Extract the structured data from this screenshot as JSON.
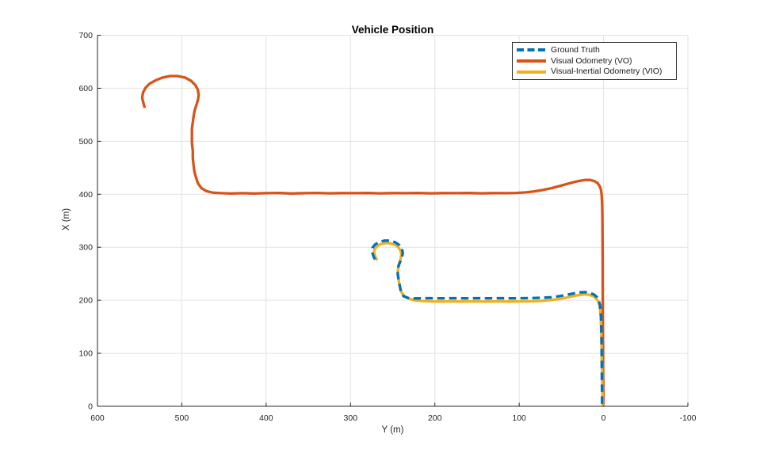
{
  "title": "Vehicle Position",
  "axes": {
    "xlabel": "Y (m)",
    "ylabel": "X (m)",
    "x_ticks": [
      600,
      500,
      400,
      300,
      200,
      100,
      0,
      -100
    ],
    "y_ticks": [
      0,
      100,
      200,
      300,
      400,
      500,
      600,
      700
    ],
    "x_range": [
      600,
      -100
    ],
    "x_reversed": true,
    "y_range": [
      0,
      700
    ],
    "grid": true
  },
  "legend": {
    "position": "top-right",
    "items": [
      {
        "label": "Ground Truth",
        "color": "#0072BD",
        "style": "dashed"
      },
      {
        "label": "Visual Odometry (VO)",
        "color": "#D95319",
        "style": "solid"
      },
      {
        "label": "Visual-Inertial Odometry (VIO)",
        "color": "#EDB120",
        "style": "solid"
      }
    ]
  },
  "colors": {
    "series_blue": "#0072BD",
    "series_orange": "#D95319",
    "series_yellow": "#EDB120",
    "grid": "#E2E2E2",
    "axis": "#262626",
    "text": "#1A1A1A",
    "background": "#FFFFFF"
  },
  "chart_data": {
    "type": "line",
    "title": "Vehicle Position",
    "xlabel": "Y (m)",
    "ylabel": "X (m)",
    "xlim": [
      600,
      -100
    ],
    "ylim": [
      0,
      700
    ],
    "grid": true,
    "legend_position": "top-right",
    "point_format": "[y_m, x_m]",
    "series": [
      {
        "name": "Visual Odometry (VO)",
        "color": "#D95319",
        "dash": false,
        "points": [
          [
            544,
            563
          ],
          [
            545.5,
            572
          ],
          [
            547,
            582
          ],
          [
            546,
            592
          ],
          [
            543,
            601
          ],
          [
            538,
            609
          ],
          [
            531,
            615
          ],
          [
            523,
            620
          ],
          [
            514,
            623
          ],
          [
            505,
            623
          ],
          [
            496,
            620
          ],
          [
            489,
            614
          ],
          [
            484,
            606
          ],
          [
            481,
            597
          ],
          [
            480,
            587
          ],
          [
            481,
            577
          ],
          [
            483,
            567
          ],
          [
            485,
            557
          ],
          [
            486,
            547
          ],
          [
            487,
            536
          ],
          [
            488,
            524
          ],
          [
            488,
            510
          ],
          [
            488,
            496
          ],
          [
            487,
            482
          ],
          [
            487,
            468
          ],
          [
            486,
            454
          ],
          [
            485,
            442
          ],
          [
            483,
            431
          ],
          [
            481,
            421
          ],
          [
            477,
            412
          ],
          [
            471,
            406
          ],
          [
            463,
            403
          ],
          [
            453,
            402
          ],
          [
            441,
            401.5
          ],
          [
            428,
            402
          ],
          [
            414,
            401.5
          ],
          [
            400,
            402
          ],
          [
            385,
            402.5
          ],
          [
            370,
            401.5
          ],
          [
            355,
            402
          ],
          [
            340,
            402.5
          ],
          [
            325,
            401.8
          ],
          [
            310,
            402.2
          ],
          [
            295,
            402
          ],
          [
            280,
            402.3
          ],
          [
            265,
            401.8
          ],
          [
            250,
            402.2
          ],
          [
            235,
            402
          ],
          [
            220,
            402.3
          ],
          [
            205,
            401.8
          ],
          [
            190,
            402.2
          ],
          [
            175,
            402
          ],
          [
            160,
            402.3
          ],
          [
            145,
            401.8
          ],
          [
            130,
            402.2
          ],
          [
            115,
            402
          ],
          [
            103,
            402.5
          ],
          [
            92,
            403.5
          ],
          [
            82,
            405.5
          ],
          [
            72,
            408
          ],
          [
            62,
            411.5
          ],
          [
            52,
            415.5
          ],
          [
            43,
            419.5
          ],
          [
            35,
            423
          ],
          [
            28,
            425.5
          ],
          [
            22,
            427
          ],
          [
            16,
            427
          ],
          [
            11,
            425
          ],
          [
            7,
            421
          ],
          [
            4.5,
            415
          ],
          [
            3,
            408
          ],
          [
            2.2,
            398
          ],
          [
            1.8,
            385
          ],
          [
            1.5,
            368
          ],
          [
            1.3,
            345
          ],
          [
            1.2,
            318
          ],
          [
            1.1,
            290
          ],
          [
            1,
            262
          ],
          [
            1,
            234
          ],
          [
            0.9,
            206
          ],
          [
            0.8,
            178
          ],
          [
            0.7,
            150
          ],
          [
            0.6,
            122
          ],
          [
            0.5,
            94
          ],
          [
            0.4,
            66
          ],
          [
            0.3,
            38
          ],
          [
            0.3,
            14
          ],
          [
            0.3,
            2
          ]
        ]
      },
      {
        "name": "Visual-Inertial Odometry (VIO)",
        "color": "#EDB120",
        "dash": false,
        "points": [
          [
            268.5,
            275.5
          ],
          [
            270.5,
            282
          ],
          [
            272,
            289.5
          ],
          [
            271.5,
            296.5
          ],
          [
            268.5,
            302
          ],
          [
            264,
            306
          ],
          [
            258.5,
            308
          ],
          [
            252.5,
            307.5
          ],
          [
            247,
            304.5
          ],
          [
            243,
            299.5
          ],
          [
            240.5,
            293
          ],
          [
            239.8,
            286
          ],
          [
            240.5,
            278.5
          ],
          [
            242,
            271
          ],
          [
            243.2,
            263.5
          ],
          [
            243.8,
            256
          ],
          [
            243.8,
            248.5
          ],
          [
            243,
            240
          ],
          [
            242.2,
            231.5
          ],
          [
            241,
            223
          ],
          [
            239.5,
            215
          ],
          [
            236.5,
            208.5
          ],
          [
            232,
            204
          ],
          [
            225.5,
            200.5
          ],
          [
            217,
            198.8
          ],
          [
            206,
            198
          ],
          [
            193,
            197.6
          ],
          [
            179,
            198
          ],
          [
            165,
            197.6
          ],
          [
            151,
            198
          ],
          [
            137,
            197.7
          ],
          [
            123,
            198
          ],
          [
            109,
            197.7
          ],
          [
            96,
            198
          ],
          [
            84,
            198.3
          ],
          [
            73,
            199
          ],
          [
            63,
            200.3
          ],
          [
            53,
            202.3
          ],
          [
            44,
            205
          ],
          [
            36,
            207.8
          ],
          [
            29,
            210
          ],
          [
            23,
            211.3
          ],
          [
            17,
            210.5
          ],
          [
            12,
            207.5
          ],
          [
            8.5,
            203
          ],
          [
            6,
            197
          ],
          [
            4.8,
            189.5
          ],
          [
            4,
            180.5
          ],
          [
            3.4,
            169
          ],
          [
            3,
            154
          ],
          [
            2.7,
            137
          ],
          [
            2.4,
            119
          ],
          [
            2.2,
            101
          ],
          [
            2,
            83
          ],
          [
            1.8,
            65
          ],
          [
            1.6,
            47
          ],
          [
            1.4,
            29
          ],
          [
            1.2,
            11
          ],
          [
            1.2,
            2
          ]
        ]
      },
      {
        "name": "Ground Truth",
        "color": "#0072BD",
        "dash": true,
        "points": [
          [
            271,
            277
          ],
          [
            273,
            284
          ],
          [
            274.5,
            292
          ],
          [
            274,
            299
          ],
          [
            271,
            305
          ],
          [
            266,
            310
          ],
          [
            260,
            312.5
          ],
          [
            253,
            312.5
          ],
          [
            247,
            309.5
          ],
          [
            242,
            304
          ],
          [
            239,
            297
          ],
          [
            238,
            289
          ],
          [
            239,
            281
          ],
          [
            241,
            273
          ],
          [
            243,
            265
          ],
          [
            244,
            257
          ],
          [
            244,
            249
          ],
          [
            243,
            240
          ],
          [
            242,
            231
          ],
          [
            241,
            222
          ],
          [
            240,
            214
          ],
          [
            237,
            207.5
          ],
          [
            232,
            204.5
          ],
          [
            225,
            203.5
          ],
          [
            216,
            203.8
          ],
          [
            205,
            204
          ],
          [
            192,
            203.6
          ],
          [
            178,
            204
          ],
          [
            164,
            203.6
          ],
          [
            150,
            204
          ],
          [
            136,
            203.7
          ],
          [
            122,
            204
          ],
          [
            108,
            203.7
          ],
          [
            95,
            204
          ],
          [
            83,
            204.3
          ],
          [
            72,
            204.8
          ],
          [
            62,
            205.8
          ],
          [
            52,
            207.8
          ],
          [
            43,
            210.5
          ],
          [
            35,
            213
          ],
          [
            28,
            215
          ],
          [
            22,
            215.5
          ],
          [
            16,
            214
          ],
          [
            11,
            210.5
          ],
          [
            7.5,
            205.5
          ],
          [
            5.5,
            199
          ],
          [
            4.2,
            191
          ],
          [
            3.5,
            181
          ],
          [
            3,
            169
          ],
          [
            2.8,
            154
          ],
          [
            2.5,
            137
          ],
          [
            2.3,
            119
          ],
          [
            2.2,
            101
          ],
          [
            2.1,
            83
          ],
          [
            2,
            65
          ],
          [
            1.9,
            47
          ],
          [
            1.8,
            29
          ],
          [
            1.8,
            11
          ],
          [
            1.8,
            3
          ]
        ]
      }
    ]
  }
}
